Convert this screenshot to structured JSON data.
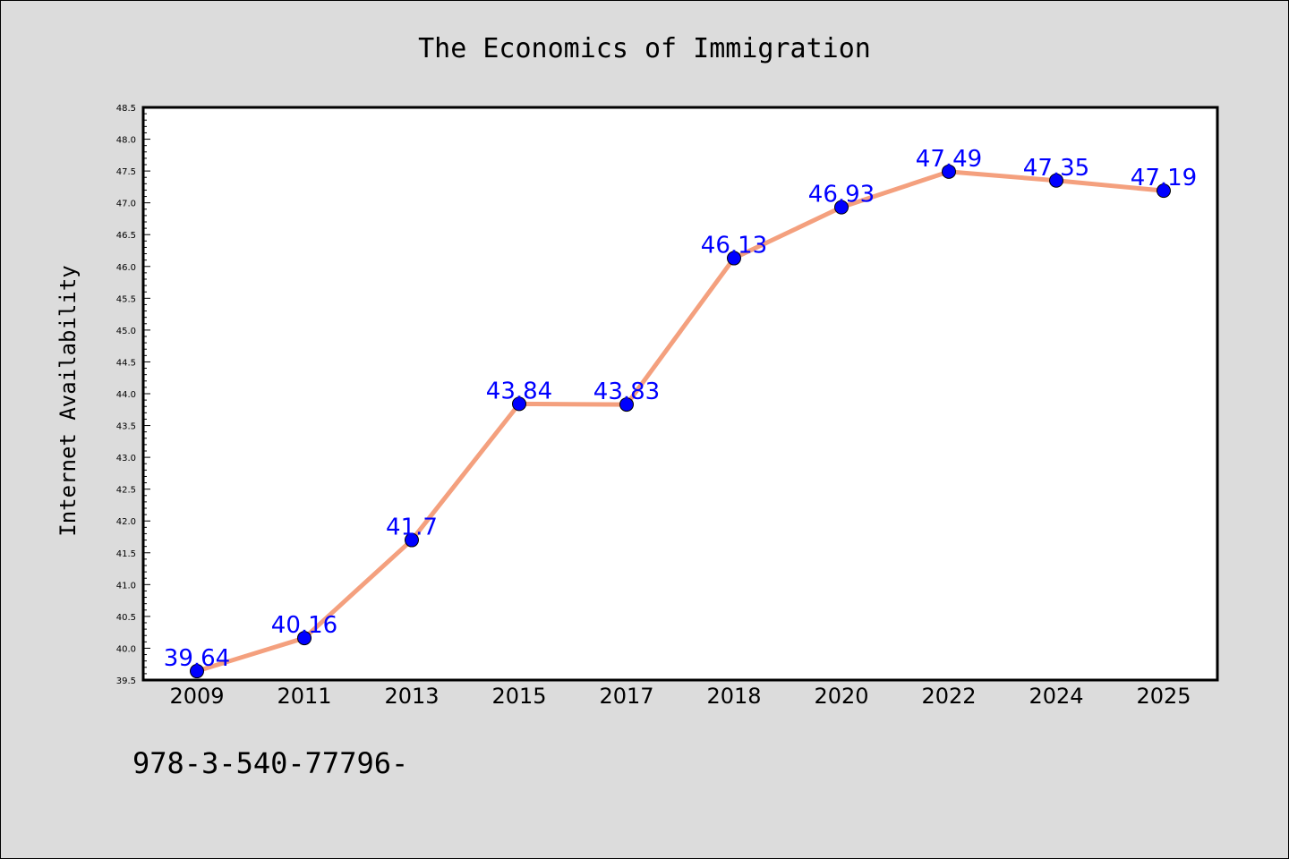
{
  "chart_data": {
    "type": "line",
    "title": "The Economics of Immigration",
    "xlabel": "",
    "ylabel": "Internet Availability",
    "categories": [
      "2009",
      "2011",
      "2013",
      "2015",
      "2017",
      "2018",
      "2020",
      "2022",
      "2024",
      "2025"
    ],
    "values": [
      39.64,
      40.16,
      41.7,
      43.84,
      43.83,
      46.13,
      46.93,
      47.49,
      47.35,
      47.19
    ],
    "data_labels": [
      "39.64",
      "40.16",
      "41.7",
      "43.84",
      "43.83",
      "46.13",
      "46.93",
      "47.49",
      "47.35",
      "47.19"
    ],
    "ylim": [
      39.5,
      48.5
    ],
    "yticks": [
      "39.5",
      "40.0",
      "40.5",
      "41.0",
      "41.5",
      "42.0",
      "42.5",
      "43.0",
      "43.5",
      "44.0",
      "44.5",
      "45.0",
      "45.5",
      "46.0",
      "46.5",
      "47.0",
      "47.5",
      "48.0",
      "48.5"
    ],
    "grid": false,
    "colors": {
      "line": "#f4a07e",
      "marker": "#0000ff",
      "labels": "#0000ff",
      "background": "#dcdcdc",
      "plot_background": "#ffffff"
    }
  },
  "footer_text": "978-3-540-77796-"
}
